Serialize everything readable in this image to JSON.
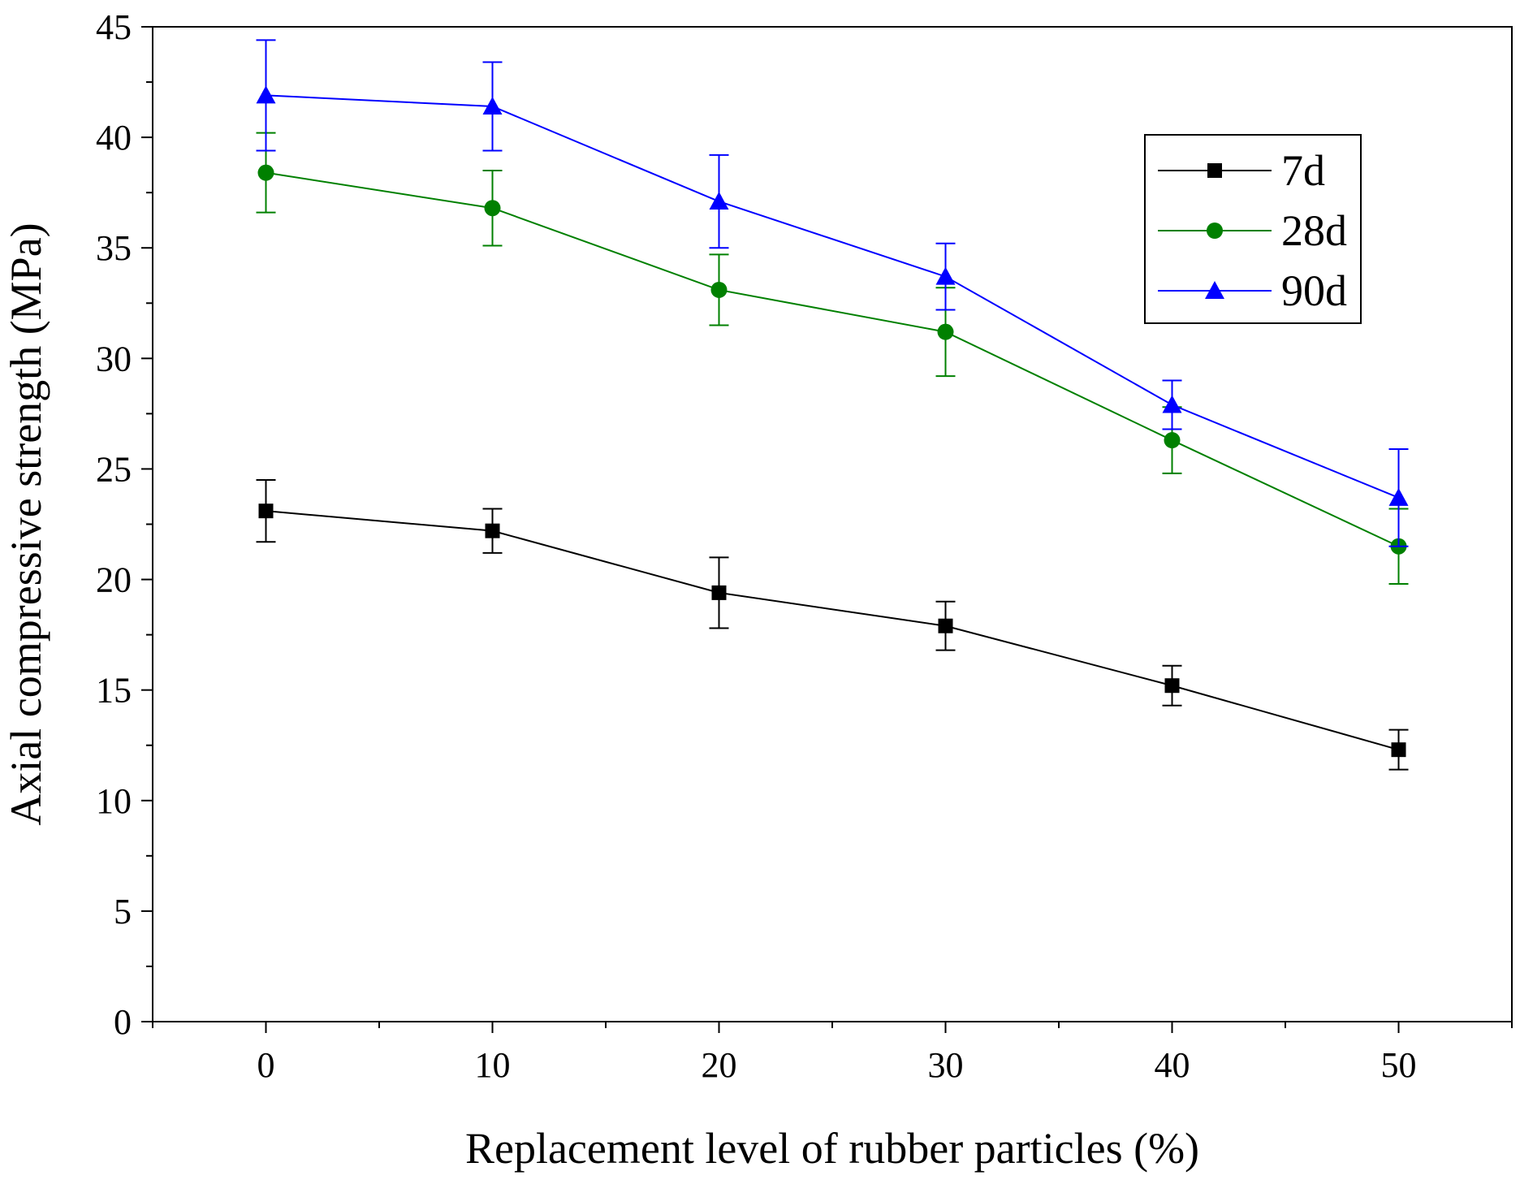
{
  "chart_data": {
    "type": "line",
    "title": "",
    "xlabel": "Replacement level of rubber particles (%)",
    "ylabel": "Axial compressive strength (MPa)",
    "xlim": [
      -5,
      55
    ],
    "ylim": [
      0,
      45
    ],
    "xticks": [
      0,
      10,
      20,
      30,
      40,
      50
    ],
    "yticks": [
      0,
      5,
      10,
      15,
      20,
      25,
      30,
      35,
      40,
      45
    ],
    "x": [
      0,
      10,
      20,
      30,
      40,
      50
    ],
    "series": [
      {
        "name": "7d",
        "color": "#000000",
        "marker": "square",
        "values": [
          23.1,
          22.2,
          19.4,
          17.9,
          15.2,
          12.3
        ],
        "errors": [
          1.4,
          1.0,
          1.6,
          1.1,
          0.9,
          0.9
        ]
      },
      {
        "name": "28d",
        "color": "#008000",
        "marker": "circle",
        "values": [
          38.4,
          36.8,
          33.1,
          31.2,
          26.3,
          21.5
        ],
        "errors": [
          1.8,
          1.7,
          1.6,
          2.0,
          1.5,
          1.7
        ]
      },
      {
        "name": "90d",
        "color": "#0000ff",
        "marker": "triangle",
        "values": [
          41.9,
          41.4,
          37.1,
          33.7,
          27.9,
          23.7
        ],
        "errors": [
          2.5,
          2.0,
          2.1,
          1.5,
          1.1,
          2.2
        ]
      }
    ],
    "legend_position": "upper-right",
    "grid": false
  }
}
